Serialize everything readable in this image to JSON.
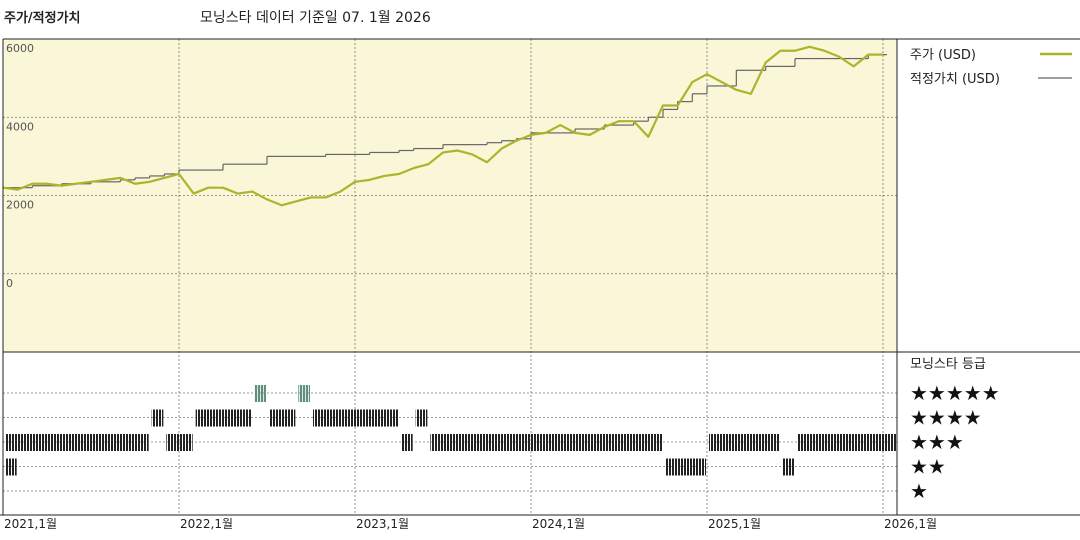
{
  "header": {
    "title": "주가/적정가치",
    "subtitle": "모닝스타 데이터 기준일 07. 1월 2026"
  },
  "chart_data": [
    {
      "type": "line",
      "x": [
        "2021-01",
        "2021-02",
        "2021-03",
        "2021-04",
        "2021-05",
        "2021-06",
        "2021-07",
        "2021-08",
        "2021-09",
        "2021-10",
        "2021-11",
        "2021-12",
        "2022-01",
        "2022-02",
        "2022-03",
        "2022-04",
        "2022-05",
        "2022-06",
        "2022-07",
        "2022-08",
        "2022-09",
        "2022-10",
        "2022-11",
        "2022-12",
        "2023-01",
        "2023-02",
        "2023-03",
        "2023-04",
        "2023-05",
        "2023-06",
        "2023-07",
        "2023-08",
        "2023-09",
        "2023-10",
        "2023-11",
        "2023-12",
        "2024-01",
        "2024-02",
        "2024-03",
        "2024-04",
        "2024-05",
        "2024-06",
        "2024-07",
        "2024-08",
        "2024-09",
        "2024-10",
        "2024-11",
        "2024-12",
        "2025-01",
        "2025-02",
        "2025-03",
        "2025-04",
        "2025-05",
        "2025-06",
        "2025-07",
        "2025-08",
        "2025-09",
        "2025-10",
        "2025-11",
        "2025-12",
        "2026-01"
      ],
      "series": [
        {
          "name": "주가 (USD)",
          "color": "#a9b52b",
          "style": "line",
          "values": [
            2200,
            2150,
            2300,
            2300,
            2250,
            2300,
            2350,
            2400,
            2450,
            2300,
            2350,
            2450,
            2550,
            2050,
            2200,
            2200,
            2050,
            2100,
            1900,
            1750,
            1850,
            1950,
            1950,
            2100,
            2350,
            2400,
            2500,
            2550,
            2700,
            2800,
            3100,
            3150,
            3050,
            2850,
            3200,
            3400,
            3550,
            3600,
            3800,
            3600,
            3550,
            3750,
            3900,
            3900,
            3500,
            4300,
            4300,
            4900,
            5100,
            4900,
            4700,
            4600,
            5400,
            5700,
            5700,
            5800,
            5700,
            5550,
            5300,
            5600,
            5600
          ]
        },
        {
          "name": "적정가치 (USD)",
          "color": "#666666",
          "style": "step",
          "values": [
            2200,
            2200,
            2250,
            2250,
            2300,
            2300,
            2350,
            2350,
            2400,
            2450,
            2500,
            2550,
            2650,
            2650,
            2650,
            2800,
            2800,
            2800,
            3000,
            3000,
            3000,
            3000,
            3050,
            3050,
            3050,
            3100,
            3100,
            3150,
            3200,
            3200,
            3300,
            3300,
            3300,
            3350,
            3400,
            3450,
            3600,
            3600,
            3600,
            3700,
            3700,
            3800,
            3800,
            3900,
            4000,
            4200,
            4400,
            4600,
            4800,
            4800,
            5200,
            5200,
            5300,
            5300,
            5500,
            5500,
            5500,
            5500,
            5500,
            5600,
            5600
          ]
        }
      ],
      "ylim": [
        -2000,
        6000
      ],
      "yticks": [
        0,
        2000,
        4000,
        6000
      ],
      "xticks": [
        {
          "value": "2021-01",
          "label": "2021,1월"
        },
        {
          "value": "2022-01",
          "label": "2022,1월"
        },
        {
          "value": "2023-01",
          "label": "2023,1월"
        },
        {
          "value": "2024-01",
          "label": "2024,1월"
        },
        {
          "value": "2025-01",
          "label": "2025,1월"
        },
        {
          "value": "2026-01",
          "label": "2026,1월"
        }
      ],
      "grid": true,
      "background": "#faf6d8"
    },
    {
      "type": "rating",
      "title": "모닝스타 등급",
      "levels": [
        {
          "stars": 5,
          "label": "★★★★★"
        },
        {
          "stars": 4,
          "label": "★★★★"
        },
        {
          "stars": 3,
          "label": "★★★"
        },
        {
          "stars": 2,
          "label": "★★"
        },
        {
          "stars": 1,
          "label": "★"
        }
      ],
      "segments": [
        {
          "start": "2021-01",
          "end": "2021-01",
          "stars": 2
        },
        {
          "start": "2021-01",
          "end": "2021-10",
          "stars": 3
        },
        {
          "start": "2021-11",
          "end": "2021-11",
          "stars": 4
        },
        {
          "start": "2021-12",
          "end": "2022-01",
          "stars": 3
        },
        {
          "start": "2022-02",
          "end": "2022-05",
          "stars": 4
        },
        {
          "start": "2022-06",
          "end": "2022-06",
          "stars": 5
        },
        {
          "start": "2022-07",
          "end": "2022-08",
          "stars": 4
        },
        {
          "start": "2022-09",
          "end": "2022-09",
          "stars": 5
        },
        {
          "start": "2022-10",
          "end": "2023-03",
          "stars": 4
        },
        {
          "start": "2023-04",
          "end": "2023-04",
          "stars": 3
        },
        {
          "start": "2023-05",
          "end": "2023-05",
          "stars": 4
        },
        {
          "start": "2023-06",
          "end": "2024-09",
          "stars": 3
        },
        {
          "start": "2024-10",
          "end": "2024-12",
          "stars": 2
        },
        {
          "start": "2025-01",
          "end": "2025-05",
          "stars": 3
        },
        {
          "start": "2025-06",
          "end": "2025-06",
          "stars": 2
        },
        {
          "start": "2025-07",
          "end": "2026-01",
          "stars": 3
        }
      ],
      "colors": {
        "5": "#5e907c",
        "other": "#333333"
      }
    }
  ]
}
